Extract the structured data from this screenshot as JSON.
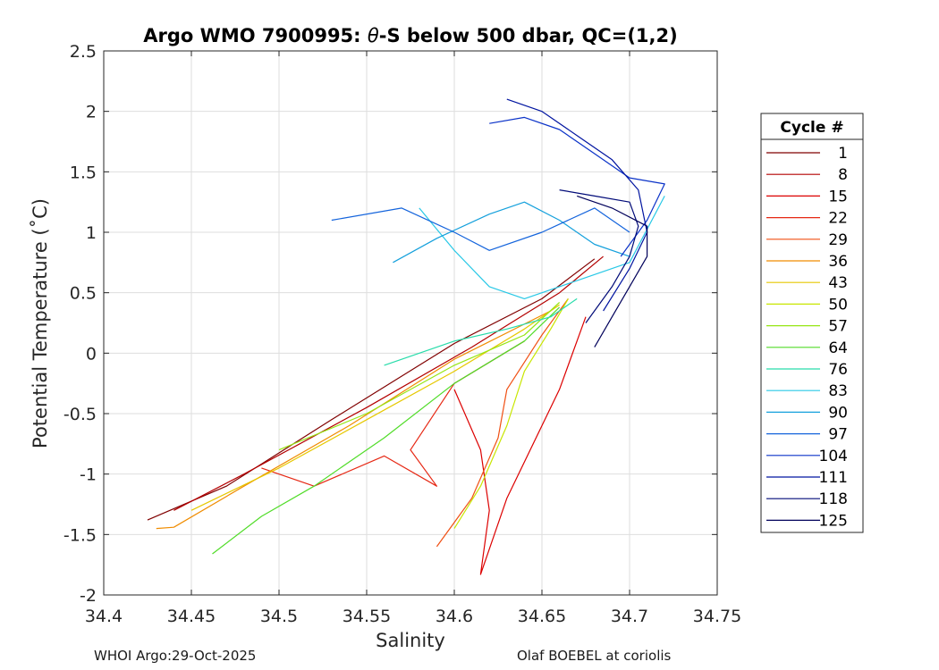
{
  "chart_data": {
    "type": "line",
    "title_prefix": "Argo WMO 7900995: ",
    "title_theta": "θ",
    "title_suffix": "-S below 500 dbar,  QC=(1,2)",
    "xlabel": "Salinity",
    "ylabel": "Potential Temperature (˚C)",
    "xlim": [
      34.4,
      34.75
    ],
    "ylim": [
      -2,
      2.5
    ],
    "x_ticks": [
      34.4,
      34.45,
      34.5,
      34.55,
      34.6,
      34.65,
      34.7,
      34.75
    ],
    "x_tick_labels": [
      "34.4",
      "34.45",
      "34.5",
      "34.55",
      "34.6",
      "34.65",
      "34.7",
      "34.75"
    ],
    "y_ticks": [
      -2,
      -1.5,
      -1,
      -0.5,
      0,
      0.5,
      1,
      1.5,
      2,
      2.5
    ],
    "y_tick_labels": [
      "-2",
      "-1.5",
      "-1",
      "-0.5",
      "0",
      "0.5",
      "1",
      "1.5",
      "2",
      "2.5"
    ],
    "grid": true,
    "legend_title": "Cycle #",
    "legend_position": "outside-right",
    "series": [
      {
        "name": "1",
        "color": "#800000",
        "points": [
          [
            34.425,
            -1.38
          ],
          [
            34.47,
            -1.1
          ],
          [
            34.53,
            -0.55
          ],
          [
            34.6,
            0.08
          ],
          [
            34.65,
            0.45
          ],
          [
            34.68,
            0.78
          ]
        ]
      },
      {
        "name": "8",
        "color": "#b40000",
        "points": [
          [
            34.44,
            -1.3
          ],
          [
            34.48,
            -1.0
          ],
          [
            34.55,
            -0.45
          ],
          [
            34.61,
            0.05
          ],
          [
            34.66,
            0.5
          ],
          [
            34.685,
            0.8
          ]
        ]
      },
      {
        "name": "15",
        "color": "#dc0000",
        "points": [
          [
            34.6,
            -0.3
          ],
          [
            34.615,
            -0.8
          ],
          [
            34.62,
            -1.3
          ],
          [
            34.615,
            -1.83
          ],
          [
            34.63,
            -1.2
          ],
          [
            34.66,
            -0.3
          ],
          [
            34.675,
            0.3
          ]
        ]
      },
      {
        "name": "22",
        "color": "#e62814",
        "points": [
          [
            34.49,
            -0.95
          ],
          [
            34.52,
            -1.1
          ],
          [
            34.56,
            -0.85
          ],
          [
            34.59,
            -1.1
          ],
          [
            34.575,
            -0.8
          ],
          [
            34.6,
            -0.25
          ],
          [
            34.64,
            0.1
          ]
        ]
      },
      {
        "name": "29",
        "color": "#f05014",
        "points": [
          [
            34.59,
            -1.6
          ],
          [
            34.61,
            -1.2
          ],
          [
            34.625,
            -0.7
          ],
          [
            34.63,
            -0.3
          ],
          [
            34.65,
            0.15
          ],
          [
            34.665,
            0.45
          ]
        ]
      },
      {
        "name": "36",
        "color": "#f08c00",
        "points": [
          [
            34.43,
            -1.45
          ],
          [
            34.44,
            -1.44
          ],
          [
            34.48,
            -1.1
          ],
          [
            34.54,
            -0.6
          ],
          [
            34.6,
            -0.05
          ],
          [
            34.655,
            0.35
          ]
        ]
      },
      {
        "name": "43",
        "color": "#e6c800",
        "points": [
          [
            34.45,
            -1.3
          ],
          [
            34.5,
            -0.95
          ],
          [
            34.55,
            -0.55
          ],
          [
            34.6,
            -0.15
          ],
          [
            34.64,
            0.2
          ],
          [
            34.66,
            0.4
          ]
        ]
      },
      {
        "name": "50",
        "color": "#c8e600",
        "points": [
          [
            34.6,
            -1.45
          ],
          [
            34.615,
            -1.1
          ],
          [
            34.63,
            -0.6
          ],
          [
            34.64,
            -0.15
          ],
          [
            34.655,
            0.2
          ],
          [
            34.665,
            0.45
          ]
        ]
      },
      {
        "name": "57",
        "color": "#96e614",
        "points": [
          [
            34.5,
            -0.8
          ],
          [
            34.55,
            -0.5
          ],
          [
            34.6,
            -0.1
          ],
          [
            34.64,
            0.15
          ],
          [
            34.66,
            0.42
          ]
        ]
      },
      {
        "name": "64",
        "color": "#50dc28",
        "points": [
          [
            34.462,
            -1.66
          ],
          [
            34.49,
            -1.35
          ],
          [
            34.52,
            -1.1
          ],
          [
            34.56,
            -0.7
          ],
          [
            34.6,
            -0.25
          ],
          [
            34.64,
            0.1
          ],
          [
            34.66,
            0.38
          ]
        ]
      },
      {
        "name": "76",
        "color": "#28dcaa",
        "points": [
          [
            34.56,
            -0.1
          ],
          [
            34.6,
            0.1
          ],
          [
            34.63,
            0.2
          ],
          [
            34.655,
            0.3
          ],
          [
            34.67,
            0.45
          ]
        ]
      },
      {
        "name": "83",
        "color": "#28c8e6",
        "points": [
          [
            34.58,
            1.2
          ],
          [
            34.6,
            0.85
          ],
          [
            34.62,
            0.55
          ],
          [
            34.64,
            0.45
          ],
          [
            34.66,
            0.55
          ],
          [
            34.7,
            0.75
          ],
          [
            34.72,
            1.3
          ]
        ]
      },
      {
        "name": "90",
        "color": "#14a0dc",
        "points": [
          [
            34.565,
            0.75
          ],
          [
            34.59,
            0.95
          ],
          [
            34.62,
            1.15
          ],
          [
            34.64,
            1.25
          ],
          [
            34.66,
            1.1
          ],
          [
            34.68,
            0.9
          ],
          [
            34.7,
            0.8
          ]
        ]
      },
      {
        "name": "97",
        "color": "#1464dc",
        "points": [
          [
            34.53,
            1.1
          ],
          [
            34.57,
            1.2
          ],
          [
            34.6,
            1.0
          ],
          [
            34.62,
            0.85
          ],
          [
            34.65,
            1.0
          ],
          [
            34.68,
            1.2
          ],
          [
            34.7,
            1.0
          ]
        ]
      },
      {
        "name": "104",
        "color": "#0a32c8",
        "points": [
          [
            34.62,
            1.9
          ],
          [
            34.64,
            1.95
          ],
          [
            34.66,
            1.85
          ],
          [
            34.68,
            1.65
          ],
          [
            34.7,
            1.45
          ],
          [
            34.72,
            1.4
          ],
          [
            34.71,
            1.1
          ],
          [
            34.695,
            0.8
          ]
        ]
      },
      {
        "name": "111",
        "color": "#0014a0",
        "points": [
          [
            34.63,
            2.1
          ],
          [
            34.65,
            2.0
          ],
          [
            34.67,
            1.8
          ],
          [
            34.69,
            1.6
          ],
          [
            34.705,
            1.35
          ],
          [
            34.71,
            1.0
          ],
          [
            34.7,
            0.7
          ],
          [
            34.685,
            0.35
          ]
        ]
      },
      {
        "name": "118",
        "color": "#000a78",
        "points": [
          [
            34.66,
            1.35
          ],
          [
            34.68,
            1.3
          ],
          [
            34.7,
            1.25
          ],
          [
            34.705,
            1.05
          ],
          [
            34.7,
            0.8
          ],
          [
            34.69,
            0.55
          ],
          [
            34.675,
            0.25
          ]
        ]
      },
      {
        "name": "125",
        "color": "#00005a",
        "points": [
          [
            34.67,
            1.3
          ],
          [
            34.69,
            1.2
          ],
          [
            34.71,
            1.05
          ],
          [
            34.71,
            0.8
          ],
          [
            34.7,
            0.55
          ],
          [
            34.69,
            0.3
          ],
          [
            34.68,
            0.05
          ]
        ]
      }
    ]
  },
  "footer": {
    "left": "WHOI Argo:29-Oct-2025",
    "right": "Olaf BOEBEL at coriolis"
  }
}
